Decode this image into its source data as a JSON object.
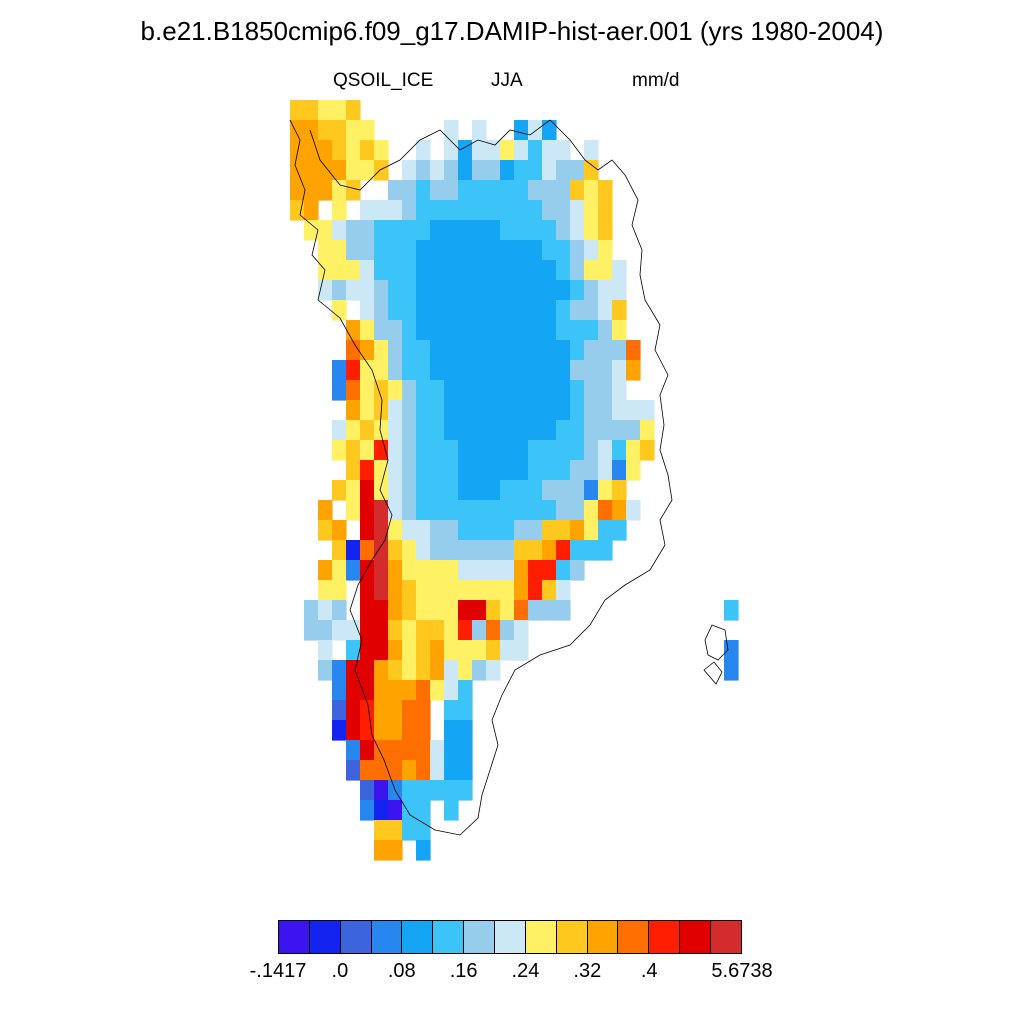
{
  "title": "b.e21.B1850cmip6.f09_g17.DAMIP-hist-aer.001 (yrs 1980-2004)",
  "subtitle": {
    "left": "QSOIL_ICE",
    "center": "JJA",
    "right": "mm/d"
  },
  "colorbar": {
    "colors": [
      "#3b14f0",
      "#1424f0",
      "#3c64dc",
      "#2886f0",
      "#14a5f5",
      "#3cc3f7",
      "#96ccec",
      "#cce8f7",
      "#fff064",
      "#ffc81e",
      "#ffa300",
      "#ff6e00",
      "#ff1e00",
      "#e00000",
      "#d42c2c"
    ],
    "tick_labels": [
      "-.1417",
      ".0",
      ".08",
      ".16",
      ".24",
      ".32",
      ".4",
      "5.6738"
    ]
  },
  "map_palette": {
    "1": "#3b14f0",
    "2": "#1424f0",
    "3": "#3c64dc",
    "4": "#2886f0",
    "5": "#14a5f5",
    "6": "#3cc3f7",
    "7": "#96ccec",
    "8": "#cce8f7",
    "9": "#fff064",
    "a": "#ffc81e",
    "b": "#ffa300",
    "c": "#ff6e00",
    "d": "#ff1e00",
    "e": "#e00000",
    "f": "#d42c2c"
  },
  "map_grid": [
    "aa99a...........................",
    "bbaa99.....8.8..585.............",
    "bbba9a9..8.858898688.8..........",
    "bbbb99a.8787577566877a..........",
    "bbb9a..7767766666777a9a.........",
    "ab.9.88876666666667789a.........",
    ".998776666555556666789a.........",
    "..997766655555555566789.........",
    "..9998666555555555567998........",
    "..8788766555555555556788........",
    "...9.876655555555556778a........",
    "....b9776555555555566679........",
    "....cb976655555555556777c.......",
    "...4d9976655555555557778b.......",
    "...4c9a97665555555556778........",
    "....b9a8766555555555677888......",
    "...89a98766555555556677779......",
    "...9a9d876665555566667869a......",
    "....ad9876665555566677849.......",
    "...a9e98766655566677749a........",
    "..b.9ef876666666666779cb8.......",
    "..ab.ef98877666677aab966........",
    "...a2cfa98777777aabd666.........",
    "..b94efb99998888bdd67...........",
    "..99.efba9999999bda8............",
    ".787.eeba999eea9c777...........6",
    ".7788eea9aa9d7c78...............",
    "..8.6eeb9ab999a88..............4",
    "..74eeba9ab8978................4",
    "...4eebbbc986..................",
    "...3edbbcc.66..................",
    "...2edbbcc.55..................",
    "....4ecccc855..................",
    "....3cccbc855..................",
    ".....31466666..................",
    ".....42166.6...................",
    "......aa66......................",
    "......bb.5......................"
  ]
}
